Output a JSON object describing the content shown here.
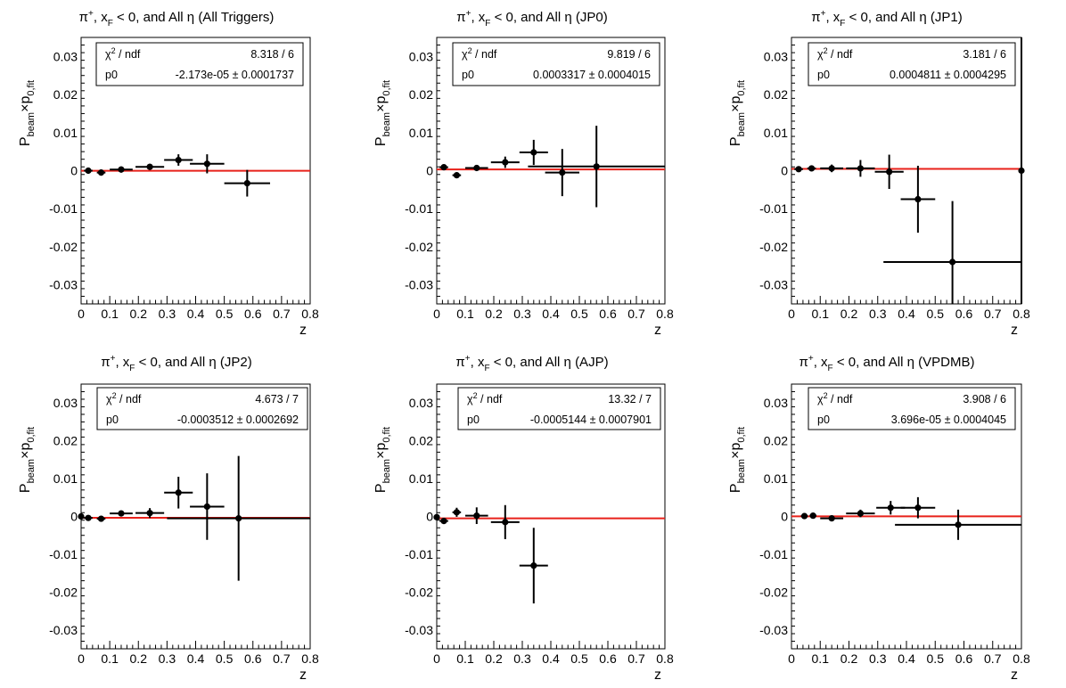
{
  "chart_data": [
    {
      "type": "scatter",
      "title": "π+, xF < 0, and All η (All Triggers)",
      "title_parts": {
        "pi": "π",
        "sup": "+",
        "x": ", x",
        "sub": "F",
        "rest": " < 0, and All η (All Triggers)"
      },
      "xlabel": "z",
      "ylabel_parts": {
        "P": "P",
        "beam": "beam",
        "times": "×p",
        "fit": "0,fit"
      },
      "xlim": [
        0,
        0.8
      ],
      "ylim": [
        -0.035,
        0.035
      ],
      "xticks": [
        0,
        0.1,
        0.2,
        0.3,
        0.4,
        0.5,
        0.6,
        0.7,
        0.8
      ],
      "xtick_labels": [
        "0",
        "0.1",
        "0.2",
        "0.3",
        "0.4",
        "0.5",
        "0.6",
        "0.7",
        "0.8"
      ],
      "yticks": [
        -0.03,
        -0.02,
        -0.01,
        0,
        0.01,
        0.02,
        0.03
      ],
      "ytick_labels": [
        "-0.03",
        "-0.02",
        "-0.01",
        "0",
        "0.01",
        "0.02",
        "0.03"
      ],
      "stats": {
        "row1_label": "χ2 / ndf",
        "chi_sym": "χ",
        "chi_sup": "2",
        "chi_rest": " / ndf",
        "row1_value": "8.318 / 6",
        "row2_label": "p0",
        "row2_value": "-2.173e-05 ± 0.0001737"
      },
      "fit_value": -2.173e-05,
      "fit_color": "#e8211a",
      "series": [
        {
          "points": [
            {
              "x": 0.025,
              "y": 0.0,
              "xerr": 0.015,
              "yerr": 0.0008
            },
            {
              "x": 0.07,
              "y": -0.0005,
              "xerr": 0.015,
              "yerr": 0.0008
            },
            {
              "x": 0.14,
              "y": 0.0003,
              "xerr": 0.04,
              "yerr": 0.0008
            },
            {
              "x": 0.24,
              "y": 0.001,
              "xerr": 0.05,
              "yerr": 0.0008
            },
            {
              "x": 0.34,
              "y": 0.0028,
              "xerr": 0.05,
              "yerr": 0.0015
            },
            {
              "x": 0.44,
              "y": 0.0018,
              "xerr": 0.06,
              "yerr": 0.0025
            },
            {
              "x": 0.58,
              "y": -0.0033,
              "xerr": 0.08,
              "yerr": 0.0035
            }
          ]
        }
      ]
    },
    {
      "type": "scatter",
      "title": "π+, xF < 0, and All η (JP0)",
      "title_parts": {
        "pi": "π",
        "sup": "+",
        "x": ", x",
        "sub": "F",
        "rest": " < 0, and All η (JP0)"
      },
      "xlabel": "z",
      "ylabel_parts": {
        "P": "P",
        "beam": "beam",
        "times": "×p",
        "fit": "0,fit"
      },
      "xlim": [
        0,
        0.8
      ],
      "ylim": [
        -0.035,
        0.035
      ],
      "xticks": [
        0,
        0.1,
        0.2,
        0.3,
        0.4,
        0.5,
        0.6,
        0.7,
        0.8
      ],
      "xtick_labels": [
        "0",
        "0.1",
        "0.2",
        "0.3",
        "0.4",
        "0.5",
        "0.6",
        "0.7",
        "0.8"
      ],
      "yticks": [
        -0.03,
        -0.02,
        -0.01,
        0,
        0.01,
        0.02,
        0.03
      ],
      "ytick_labels": [
        "-0.03",
        "-0.02",
        "-0.01",
        "0",
        "0.01",
        "0.02",
        "0.03"
      ],
      "stats": {
        "row1_label": "χ2 / ndf",
        "chi_sym": "χ",
        "chi_sup": "2",
        "chi_rest": " / ndf",
        "row1_value": "9.819 / 6",
        "row2_label": "p0",
        "row2_value": "0.0003317 ± 0.0004015"
      },
      "fit_value": 0.0003317,
      "fit_color": "#e8211a",
      "series": [
        {
          "points": [
            {
              "x": 0.025,
              "y": 0.0009,
              "xerr": 0.015,
              "yerr": 0.0006
            },
            {
              "x": 0.07,
              "y": -0.0012,
              "xerr": 0.015,
              "yerr": 0.0006
            },
            {
              "x": 0.14,
              "y": 0.0007,
              "xerr": 0.04,
              "yerr": 0.0006
            },
            {
              "x": 0.24,
              "y": 0.0022,
              "xerr": 0.05,
              "yerr": 0.0015
            },
            {
              "x": 0.34,
              "y": 0.0048,
              "xerr": 0.05,
              "yerr": 0.0033
            },
            {
              "x": 0.44,
              "y": -0.0005,
              "xerr": 0.06,
              "yerr": 0.0062
            },
            {
              "x": 0.56,
              "y": 0.0011,
              "xerr": 0.24,
              "yerr": 0.0107
            }
          ]
        }
      ]
    },
    {
      "type": "scatter",
      "title": "π+, xF < 0, and All η (JP1)",
      "title_parts": {
        "pi": "π",
        "sup": "+",
        "x": ", x",
        "sub": "F",
        "rest": " < 0, and All η (JP1)"
      },
      "xlabel": "z",
      "ylabel_parts": {
        "P": "P",
        "beam": "beam",
        "times": "×p",
        "fit": "0,fit"
      },
      "xlim": [
        0,
        0.8
      ],
      "ylim": [
        -0.035,
        0.035
      ],
      "xticks": [
        0,
        0.1,
        0.2,
        0.3,
        0.4,
        0.5,
        0.6,
        0.7,
        0.8
      ],
      "xtick_labels": [
        "0",
        "0.1",
        "0.2",
        "0.3",
        "0.4",
        "0.5",
        "0.6",
        "0.7",
        "0.8"
      ],
      "yticks": [
        -0.03,
        -0.02,
        -0.01,
        0,
        0.01,
        0.02,
        0.03
      ],
      "ytick_labels": [
        "-0.03",
        "-0.02",
        "-0.01",
        "0",
        "0.01",
        "0.02",
        "0.03"
      ],
      "stats": {
        "row1_label": "χ2 / ndf",
        "chi_sym": "χ",
        "chi_sup": "2",
        "chi_rest": " / ndf",
        "row1_value": "3.181 / 6",
        "row2_label": "p0",
        "row2_value": "0.0004811 ± 0.0004295"
      },
      "fit_value": 0.0004811,
      "fit_color": "#e8211a",
      "series": [
        {
          "points": [
            {
              "x": 0.025,
              "y": 0.0004,
              "xerr": 0.015,
              "yerr": 0.0006
            },
            {
              "x": 0.07,
              "y": 0.0006,
              "xerr": 0.015,
              "yerr": 0.0006
            },
            {
              "x": 0.14,
              "y": 0.0006,
              "xerr": 0.04,
              "yerr": 0.001
            },
            {
              "x": 0.24,
              "y": 0.0006,
              "xerr": 0.05,
              "yerr": 0.0022
            },
            {
              "x": 0.34,
              "y": -0.0003,
              "xerr": 0.05,
              "yerr": 0.0045
            },
            {
              "x": 0.44,
              "y": -0.0075,
              "xerr": 0.06,
              "yerr": 0.0088
            },
            {
              "x": 0.56,
              "y": -0.024,
              "xerr": 0.24,
              "yerr": 0.016
            },
            {
              "x": 0.8,
              "y": 0.0,
              "xerr": 0.0,
              "yerr": 0.035
            }
          ]
        }
      ]
    },
    {
      "type": "scatter",
      "title": "π+, xF < 0, and All η (JP2)",
      "title_parts": {
        "pi": "π",
        "sup": "+",
        "x": ", x",
        "sub": "F",
        "rest": " < 0, and All η (JP2)"
      },
      "xlabel": "z",
      "ylabel_parts": {
        "P": "P",
        "beam": "beam",
        "times": "×p",
        "fit": "0,fit"
      },
      "xlim": [
        0,
        0.8
      ],
      "ylim": [
        -0.035,
        0.035
      ],
      "xticks": [
        0,
        0.1,
        0.2,
        0.3,
        0.4,
        0.5,
        0.6,
        0.7,
        0.8
      ],
      "xtick_labels": [
        "0",
        "0.1",
        "0.2",
        "0.3",
        "0.4",
        "0.5",
        "0.6",
        "0.7",
        "0.8"
      ],
      "yticks": [
        -0.03,
        -0.02,
        -0.01,
        0,
        0.01,
        0.02,
        0.03
      ],
      "ytick_labels": [
        "-0.03",
        "-0.02",
        "-0.01",
        "0",
        "0.01",
        "0.02",
        "0.03"
      ],
      "stats": {
        "row1_label": "χ2 / ndf",
        "chi_sym": "χ",
        "chi_sup": "2",
        "chi_rest": " / ndf",
        "row1_value": "4.673 / 7",
        "row2_label": "p0",
        "row2_value": "-0.0003512 ± 0.0002692"
      },
      "fit_value": -0.0003512,
      "fit_color": "#e8211a",
      "series": [
        {
          "points": [
            {
              "x": 0.0,
              "y": 0.0,
              "xerr": 0.01,
              "yerr": 0.0005
            },
            {
              "x": 0.025,
              "y": -0.0004,
              "xerr": 0.015,
              "yerr": 0.0005
            },
            {
              "x": 0.07,
              "y": -0.0006,
              "xerr": 0.015,
              "yerr": 0.0005
            },
            {
              "x": 0.14,
              "y": 0.0008,
              "xerr": 0.04,
              "yerr": 0.0005
            },
            {
              "x": 0.24,
              "y": 0.0009,
              "xerr": 0.05,
              "yerr": 0.0013
            },
            {
              "x": 0.34,
              "y": 0.0063,
              "xerr": 0.05,
              "yerr": 0.0042
            },
            {
              "x": 0.44,
              "y": 0.0026,
              "xerr": 0.06,
              "yerr": 0.0088
            },
            {
              "x": 0.55,
              "y": -0.0005,
              "xerr": 0.25,
              "yerr": 0.0165
            }
          ]
        }
      ]
    },
    {
      "type": "scatter",
      "title": "π+, xF < 0, and All η (AJP)",
      "title_parts": {
        "pi": "π",
        "sup": "+",
        "x": ", x",
        "sub": "F",
        "rest": " < 0, and All η (AJP)"
      },
      "xlabel": "z",
      "ylabel_parts": {
        "P": "P",
        "beam": "beam",
        "times": "×p",
        "fit": "0,fit"
      },
      "xlim": [
        0,
        0.8
      ],
      "ylim": [
        -0.035,
        0.035
      ],
      "xticks": [
        0,
        0.1,
        0.2,
        0.3,
        0.4,
        0.5,
        0.6,
        0.7,
        0.8
      ],
      "xtick_labels": [
        "0",
        "0.1",
        "0.2",
        "0.3",
        "0.4",
        "0.5",
        "0.6",
        "0.7",
        "0.8"
      ],
      "yticks": [
        -0.03,
        -0.02,
        -0.01,
        0,
        0.01,
        0.02,
        0.03
      ],
      "ytick_labels": [
        "-0.03",
        "-0.02",
        "-0.01",
        "0",
        "0.01",
        "0.02",
        "0.03"
      ],
      "stats": {
        "row1_label": "χ2 / ndf",
        "chi_sym": "χ",
        "chi_sup": "2",
        "chi_rest": " / ndf",
        "row1_value": "13.32 / 7",
        "row2_label": "p0",
        "row2_value": "-0.0005144 ± 0.0007901"
      },
      "fit_value": -0.0005144,
      "fit_color": "#e8211a",
      "series": [
        {
          "points": [
            {
              "x": 0.0,
              "y": -0.0002,
              "xerr": 0.01,
              "yerr": 0.0006
            },
            {
              "x": 0.025,
              "y": -0.0012,
              "xerr": 0.015,
              "yerr": 0.0008
            },
            {
              "x": 0.07,
              "y": 0.0011,
              "xerr": 0.015,
              "yerr": 0.0012
            },
            {
              "x": 0.14,
              "y": 0.0002,
              "xerr": 0.04,
              "yerr": 0.0022
            },
            {
              "x": 0.24,
              "y": -0.0015,
              "xerr": 0.05,
              "yerr": 0.0045
            },
            {
              "x": 0.34,
              "y": -0.013,
              "xerr": 0.05,
              "yerr": 0.01
            }
          ]
        }
      ]
    },
    {
      "type": "scatter",
      "title": "π+, xF < 0, and All η (VPDMB)",
      "title_parts": {
        "pi": "π",
        "sup": "+",
        "x": ", x",
        "sub": "F",
        "rest": " < 0, and All η (VPDMB)"
      },
      "xlabel": "z",
      "ylabel_parts": {
        "P": "P",
        "beam": "beam",
        "times": "×p",
        "fit": "0,fit"
      },
      "xlim": [
        0,
        0.8
      ],
      "ylim": [
        -0.035,
        0.035
      ],
      "xticks": [
        0,
        0.1,
        0.2,
        0.3,
        0.4,
        0.5,
        0.6,
        0.7,
        0.8
      ],
      "xtick_labels": [
        "0",
        "0.1",
        "0.2",
        "0.3",
        "0.4",
        "0.5",
        "0.6",
        "0.7",
        "0.8"
      ],
      "yticks": [
        -0.03,
        -0.02,
        -0.01,
        0,
        0.01,
        0.02,
        0.03
      ],
      "ytick_labels": [
        "-0.03",
        "-0.02",
        "-0.01",
        "0",
        "0.01",
        "0.02",
        "0.03"
      ],
      "stats": {
        "row1_label": "χ2 / ndf",
        "chi_sym": "χ",
        "chi_sup": "2",
        "chi_rest": " / ndf",
        "row1_value": "3.908 / 6",
        "row2_label": "p0",
        "row2_value": "3.696e-05 ± 0.0004045"
      },
      "fit_value": 3.696e-05,
      "fit_color": "#e8211a",
      "series": [
        {
          "points": [
            {
              "x": 0.045,
              "y": 0.0001,
              "xerr": 0.012,
              "yerr": 0.0008
            },
            {
              "x": 0.075,
              "y": 0.0002,
              "xerr": 0.012,
              "yerr": 0.0006
            },
            {
              "x": 0.14,
              "y": -0.0005,
              "xerr": 0.04,
              "yerr": 0.0006
            },
            {
              "x": 0.24,
              "y": 0.0008,
              "xerr": 0.05,
              "yerr": 0.001
            },
            {
              "x": 0.345,
              "y": 0.0023,
              "xerr": 0.05,
              "yerr": 0.0018
            },
            {
              "x": 0.44,
              "y": 0.0023,
              "xerr": 0.06,
              "yerr": 0.0028
            },
            {
              "x": 0.58,
              "y": -0.0022,
              "xerr": 0.22,
              "yerr": 0.004
            }
          ]
        }
      ]
    }
  ]
}
